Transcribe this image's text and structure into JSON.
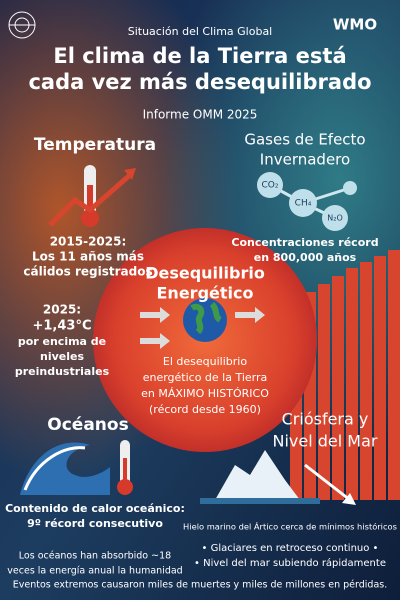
{
  "header": {
    "kicker": "Situación del Clima Global",
    "logo": "WMO",
    "title_lines": [
      "El clima de la Tierra está",
      "cada vez más desequilibrado"
    ],
    "subtitle": "Informe OMM 2025"
  },
  "temperature": {
    "heading": "Temperatura",
    "fact1": [
      "2015-2025:",
      "Los 11 años más",
      "cálidos registrados"
    ],
    "fact2": [
      "2025:",
      "+1,43°C",
      "por encima de",
      "niveles",
      "preindustriales"
    ]
  },
  "gases": {
    "heading": [
      "Gases de Efecto",
      "Invernadero"
    ],
    "molecules": [
      "CO₂",
      "CH₄",
      "N₂O"
    ],
    "fact": [
      "Concentraciones récord",
      "en 800,000 años"
    ]
  },
  "center": {
    "heading": [
      "Desequilibrio",
      "Energético"
    ],
    "body": [
      "El desequilibrio",
      "energético de la Tierra",
      "en MÁXIMO HISTÓRICO",
      "(récord desde 1960)"
    ]
  },
  "oceans": {
    "heading": "Océanos",
    "fact1": [
      "Contenido de calor oceánico:",
      "9º récord consecutivo"
    ],
    "fact2": [
      "Los océanos han absorbido ~18",
      "veces la energía anual la humanidad"
    ]
  },
  "cryosphere": {
    "heading": [
      "Criósfera y",
      "Nivel del Mar"
    ],
    "items": [
      "Hielo marino del Ártico cerca de mínimos históricos",
      "• Glaciares en retroceso continuo •",
      "• Nivel del mar subiendo rápidamente"
    ]
  },
  "footer": "Eventos extremos causaron miles de muertes y miles de millones en pérdidas."
}
